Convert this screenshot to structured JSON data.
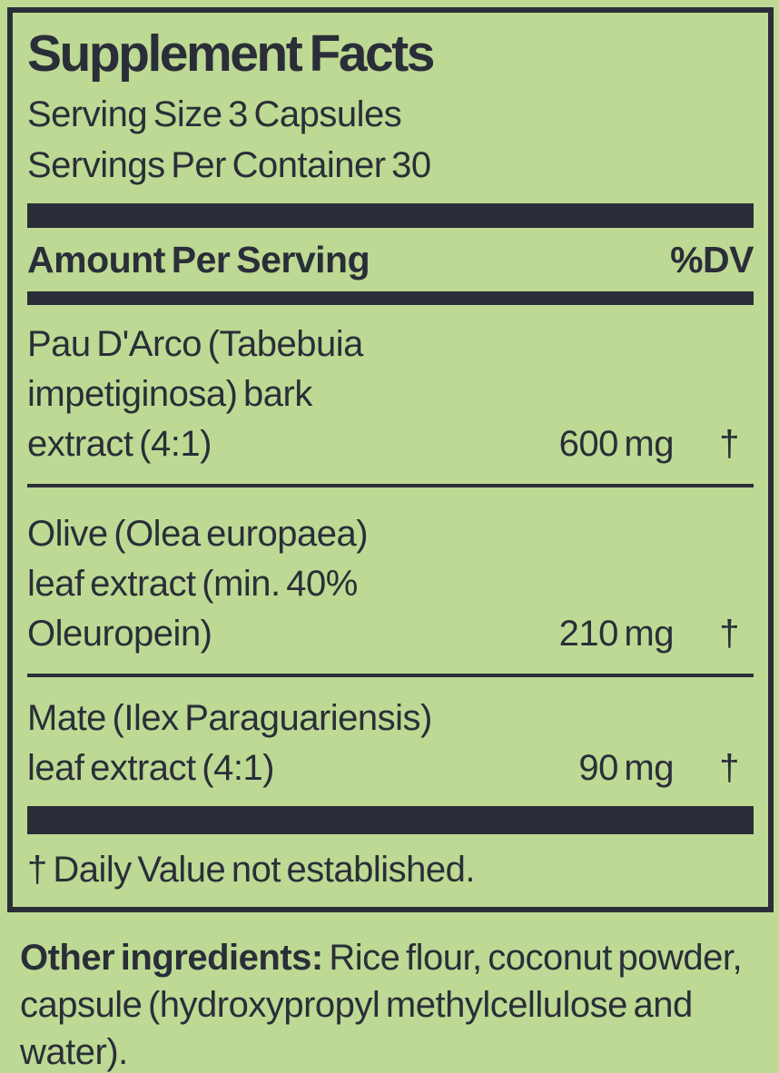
{
  "colors": {
    "background": "#bed993",
    "ink": "#2a2e38"
  },
  "panel": {
    "title": "Supplement Facts",
    "serving_size": "Serving Size 3 Capsules",
    "servings_per_container": "Servings Per Container 30",
    "columns": {
      "amount_header": "Amount Per Serving",
      "dv_header": "%DV"
    },
    "ingredients": [
      {
        "name_lines": [
          "Pau D'Arco (Tabebuia",
          "impetiginosa) bark",
          "extract (4:1)"
        ],
        "amount": "600 mg",
        "dv": "†"
      },
      {
        "name_lines": [
          "Olive (Olea europaea)",
          "leaf extract (min. 40%",
          "Oleuropein)"
        ],
        "amount": "210 mg",
        "dv": "†"
      },
      {
        "name_lines": [
          "Mate (Ilex Paraguariensis)",
          "leaf extract (4:1)"
        ],
        "amount": "90 mg",
        "dv": "†"
      }
    ],
    "footnote": "† Daily Value not established."
  },
  "other_ingredients": {
    "label": "Other ingredients:",
    "text": " Rice flour, coconut powder, capsule (hydroxypropyl methylcellulose and water)."
  }
}
